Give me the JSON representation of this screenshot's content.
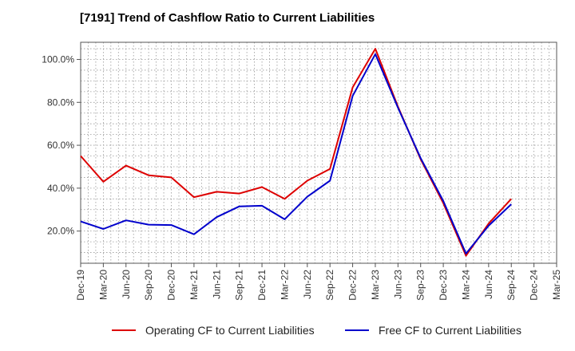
{
  "chart_data": {
    "type": "line",
    "title": "[7191]  Trend of Cashflow Ratio to Current Liabilities",
    "xlabel": "",
    "ylabel": "",
    "x": [
      "Dec-19",
      "Mar-20",
      "Jun-20",
      "Sep-20",
      "Dec-20",
      "Mar-21",
      "Jun-21",
      "Sep-21",
      "Dec-21",
      "Mar-22",
      "Jun-22",
      "Sep-22",
      "Dec-22",
      "Mar-23",
      "Jun-23",
      "Sep-23",
      "Dec-23",
      "Mar-24",
      "Jun-24",
      "Sep-24",
      "Dec-24",
      "Mar-25"
    ],
    "x_tick_labels": [
      "Dec-19",
      "Mar-20",
      "Jun-20",
      "Sep-20",
      "Dec-20",
      "Mar-21",
      "Jun-21",
      "Sep-21",
      "Dec-21",
      "Mar-22",
      "Jun-22",
      "Sep-22",
      "Dec-22",
      "Mar-23",
      "Jun-23",
      "Sep-23",
      "Dec-23",
      "Mar-24",
      "Jun-24",
      "Sep-24",
      "Dec-24",
      "Mar-25"
    ],
    "y_ticks": [
      20,
      40,
      60,
      80,
      100
    ],
    "y_tick_labels": [
      "20.0%",
      "40.0%",
      "60.0%",
      "80.0%",
      "100.0%"
    ],
    "ylim": [
      5,
      108
    ],
    "grid": true,
    "legend_position": "bottom",
    "series": [
      {
        "name": "Operating CF to Current Liabilities",
        "color": "#dd0000",
        "values": [
          55.0,
          43.0,
          50.5,
          46.0,
          45.0,
          35.8,
          38.3,
          37.5,
          40.5,
          35.0,
          43.5,
          49.0,
          87.0,
          105.0,
          78.0,
          53.5,
          33.0,
          8.5,
          23.5,
          35.0,
          null,
          null
        ]
      },
      {
        "name": "Free CF to Current Liabilities",
        "color": "#0000cc",
        "values": [
          24.5,
          21.0,
          25.0,
          23.0,
          22.8,
          18.5,
          26.5,
          31.5,
          31.8,
          25.5,
          36.0,
          43.5,
          83.0,
          102.5,
          77.5,
          54.0,
          34.0,
          9.5,
          22.5,
          32.5,
          null,
          null
        ]
      }
    ]
  }
}
